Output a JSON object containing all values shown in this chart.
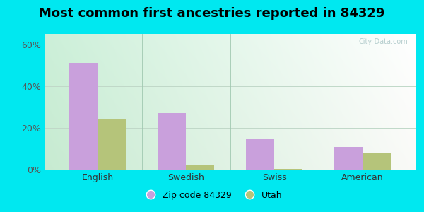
{
  "title": "Most common first ancestries reported in 84329",
  "categories": [
    "English",
    "Swedish",
    "Swiss",
    "American"
  ],
  "zip_values": [
    51,
    27,
    15,
    11
  ],
  "utah_values": [
    24,
    2,
    0.5,
    8
  ],
  "zip_color": "#c9a0dc",
  "utah_color": "#b5c47a",
  "bar_width": 0.32,
  "ylim_max": 65,
  "yticks": [
    0,
    20,
    40,
    60
  ],
  "ytick_labels": [
    "0%",
    "20%",
    "40%",
    "60%"
  ],
  "legend_zip_label": "Zip code 84329",
  "legend_utah_label": "Utah",
  "bg_outer": "#00e8f0",
  "title_fontsize": 13,
  "axis_fontsize": 9,
  "tick_fontsize": 9,
  "legend_fontsize": 9,
  "watermark": "City-Data.com",
  "bg_grad_left": "#c5e8ce",
  "bg_grad_right": "#eaf6ee"
}
